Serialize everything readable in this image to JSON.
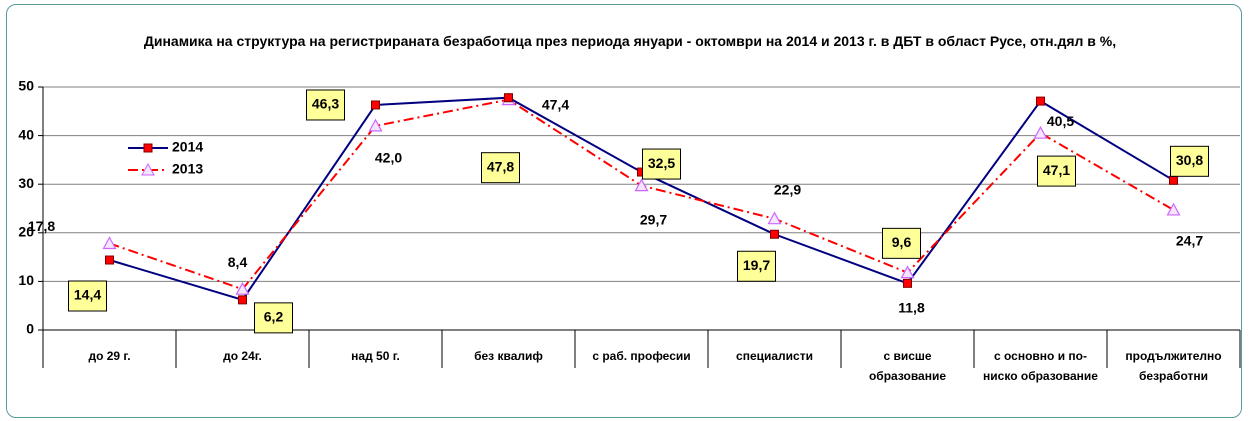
{
  "chart_data": {
    "type": "line",
    "title": "Динамика на структура на регистрираната безработица през периода януари - октомври на 2014 и 2013 г. в ДБТ в област Русе, отн.дял в %,",
    "categories": [
      "до 29 г.",
      "до 24г.",
      "над 50 г.",
      "без квалиф",
      "с раб. професии",
      "специалисти",
      "с висше образование",
      "с основно и по-ниско образование",
      "продължително безработни"
    ],
    "series": [
      {
        "name": "2014",
        "color": "#000080",
        "marker_color": "#ff0000",
        "values": [
          14.4,
          6.2,
          46.3,
          47.8,
          32.5,
          19.7,
          9.6,
          47.1,
          30.8
        ],
        "value_labels": [
          "14,4",
          "6,2",
          "46,3",
          "47,8",
          "32,5",
          "19,7",
          "9,6",
          "47,1",
          "30,8"
        ]
      },
      {
        "name": "2013",
        "color": "#ff0000",
        "marker_color": "#cc66ff",
        "values": [
          17.8,
          8.4,
          42.0,
          47.4,
          29.7,
          22.9,
          11.8,
          40.5,
          24.7
        ],
        "value_labels": [
          "17,8",
          "8,4",
          "42,0",
          "47,4",
          "29,7",
          "22,9",
          "11,8",
          "40,5",
          "24,7"
        ]
      }
    ],
    "ylim": [
      0,
      50
    ],
    "yticks": [
      0,
      10,
      20,
      30,
      40,
      50
    ],
    "grid": true,
    "legend": "left"
  }
}
